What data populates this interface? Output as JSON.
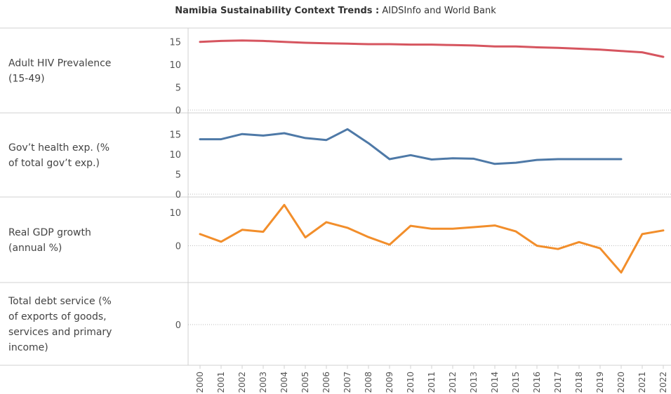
{
  "title": {
    "bold": "Namibia Sustainability Context Trends :",
    "rest": " AIDSInfo and World Bank"
  },
  "chart_data": {
    "type": "line",
    "x": [
      "2000",
      "2001",
      "2002",
      "2003",
      "2004",
      "2005",
      "2006",
      "2007",
      "2008",
      "2009",
      "2010",
      "2011",
      "2012",
      "2013",
      "2014",
      "2015",
      "2016",
      "2017",
      "2018",
      "2019",
      "2020",
      "2021",
      "2022"
    ],
    "panels": [
      {
        "label": "Adult HIV Prevalence (15-49)",
        "label_lines": [
          "Adult HIV Prevalence",
          "(15-49)"
        ],
        "color": "#d6555f",
        "ylim": [
          0,
          16.5
        ],
        "ticks": [
          "15",
          "10",
          "5",
          "0"
        ],
        "tick_values": [
          15,
          10,
          5,
          0
        ],
        "values": [
          15.0,
          15.2,
          15.3,
          15.2,
          15.0,
          14.8,
          14.7,
          14.6,
          14.5,
          14.5,
          14.4,
          14.4,
          14.3,
          14.2,
          14.0,
          14.0,
          13.8,
          13.7,
          13.5,
          13.3,
          13.0,
          12.7,
          11.7
        ]
      },
      {
        "label": "Gov’t health exp. (% of total gov’t exp.)",
        "label_lines": [
          "Gov’t health exp. (%",
          "of total gov’t exp.)"
        ],
        "color": "#4e79a7",
        "ylim": [
          0,
          19
        ],
        "ticks": [
          "15",
          "10",
          "5",
          "0"
        ],
        "tick_values": [
          15,
          10,
          5,
          0
        ],
        "values": [
          13.8,
          13.8,
          15.1,
          14.7,
          15.3,
          14.1,
          13.6,
          16.3,
          12.8,
          8.8,
          9.8,
          8.7,
          9.0,
          8.9,
          7.6,
          7.9,
          8.6,
          8.8,
          8.8,
          8.8,
          8.8,
          null,
          null
        ]
      },
      {
        "label": "Real GDP growth (annual %)",
        "label_lines": [
          "Real GDP growth",
          "(annual %)"
        ],
        "color": "#f28e2b",
        "ylim": [
          -9,
          13
        ],
        "ticks": [
          "10",
          "0"
        ],
        "tick_values": [
          10,
          0
        ],
        "values": [
          3.5,
          1.2,
          4.8,
          4.2,
          12.3,
          2.5,
          7.1,
          5.4,
          2.6,
          0.3,
          6.0,
          5.1,
          5.1,
          5.6,
          6.1,
          4.3,
          0.0,
          -1.0,
          1.1,
          -0.8,
          -8.1,
          3.5,
          4.6
        ]
      },
      {
        "label": "Total debt service (% of exports of goods, services and primary income)",
        "label_lines": [
          "Total debt service (%",
          "of exports of goods,",
          "services and primary",
          "income)"
        ],
        "color": "#888888",
        "ylim": [
          -1,
          1
        ],
        "ticks": [
          "0"
        ],
        "tick_values": [
          0
        ],
        "values": []
      }
    ]
  }
}
